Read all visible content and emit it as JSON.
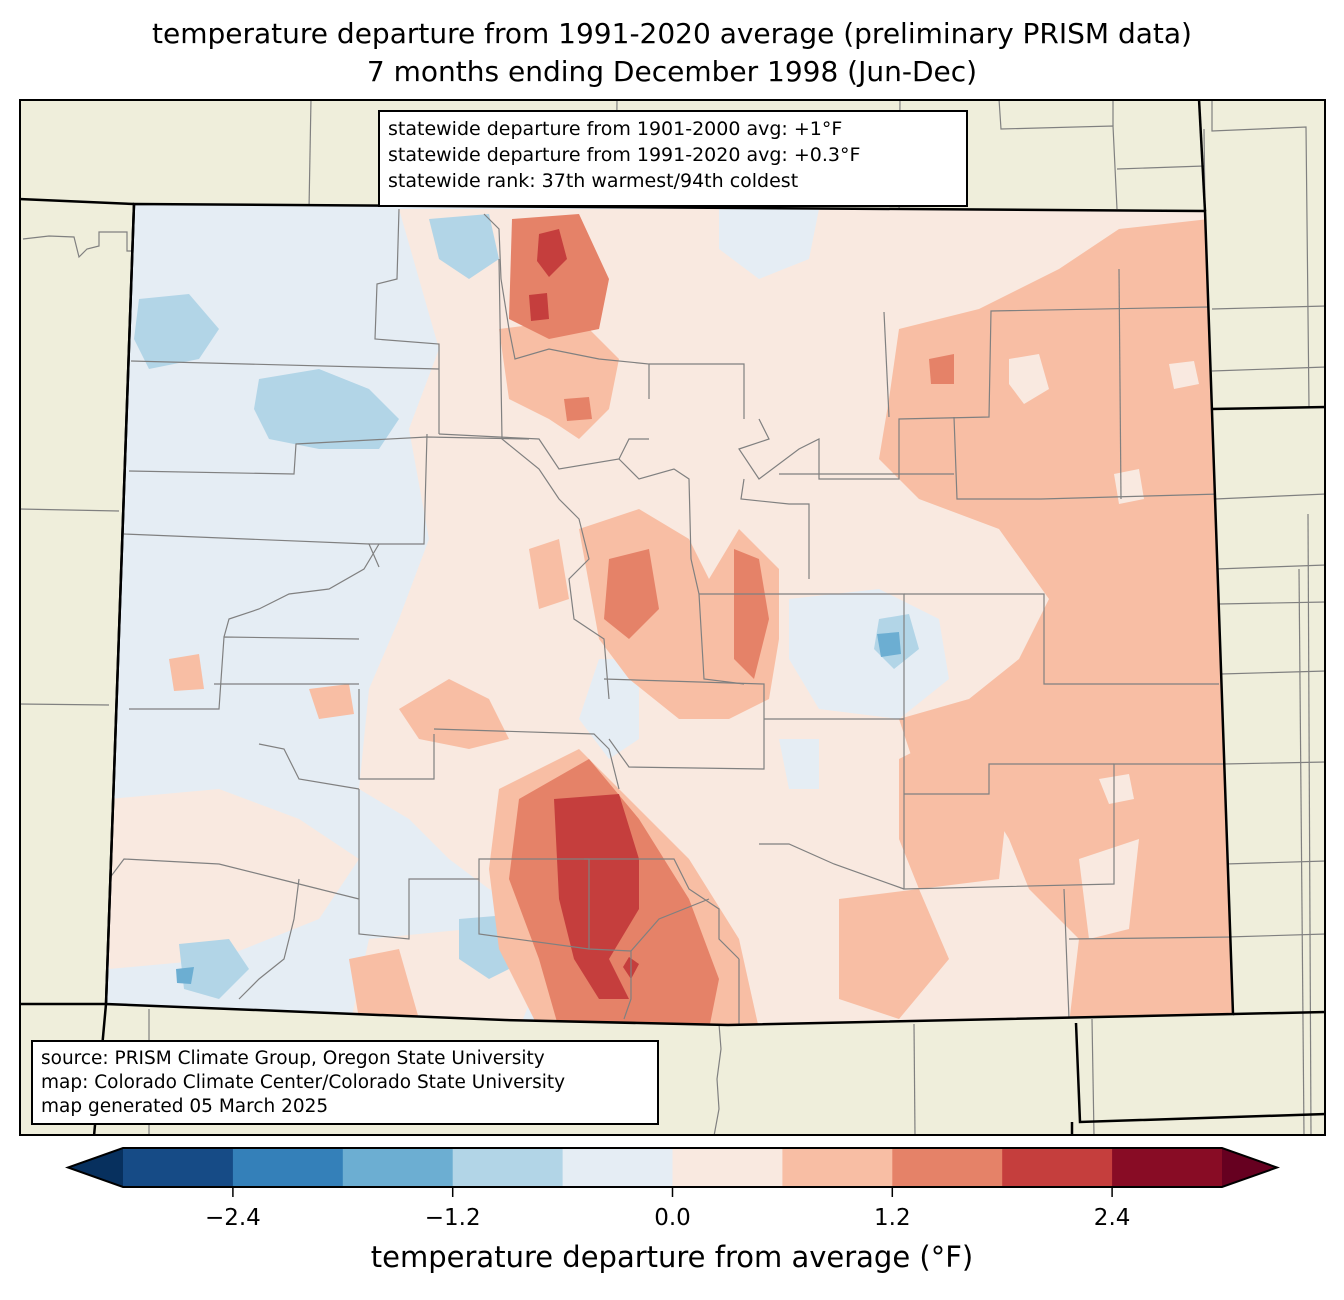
{
  "title": {
    "line1": "temperature departure from 1991-2020 average (preliminary PRISM data)",
    "line2": "7 months ending December 1998 (Jun-Dec)"
  },
  "stats_box": {
    "line1": "statewide departure from 1901-2000 avg: +1°F",
    "line2": "statewide departure from 1991-2020 avg: +0.3°F",
    "line3": "statewide rank: 37th warmest/94th coldest"
  },
  "source_box": {
    "line1": "source: PRISM Climate Group, Oregon State University",
    "line2": "map: Colorado Climate Center/Colorado State University",
    "line3": "map generated 05 March 2025"
  },
  "colorbar": {
    "label": "temperature departure from average (°F)",
    "ticks": [
      "−2.4",
      "−1.2",
      "0.0",
      "1.2",
      "2.4"
    ],
    "tick_values": [
      -2.4,
      -1.2,
      0.0,
      1.2,
      2.4
    ],
    "range": [
      -3.0,
      3.0
    ],
    "bin_edges": [
      -3.0,
      -2.4,
      -1.8,
      -1.2,
      -0.6,
      0.0,
      0.6,
      1.2,
      1.8,
      2.4,
      3.0
    ],
    "colors": [
      "#164b86",
      "#3480b9",
      "#6caed2",
      "#b2d5e7",
      "#e5edf4",
      "#f9e9e0",
      "#f8bea4",
      "#e58268",
      "#c53e3d",
      "#880c25"
    ],
    "under_color": "#07305e",
    "over_color": "#660020"
  },
  "map_colors": {
    "land": "#efeedb",
    "state_border": "#000000",
    "county_border": "#808080"
  }
}
